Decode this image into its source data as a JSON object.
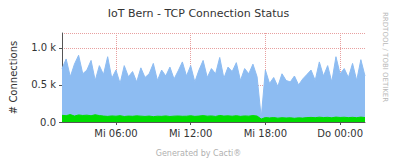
{
  "chart_data": {
    "type": "area",
    "title": "IoT Bern - TCP Connection Status",
    "y_label": "# Connections",
    "annotations": [
      "RRDTOOL / TOBI OETIKER",
      "Generated by Cacti®"
    ],
    "categories": [
      null,
      null,
      null,
      null,
      null,
      null,
      null,
      null,
      null,
      null,
      null,
      null,
      null,
      "Mi 06:00",
      null,
      null,
      null,
      null,
      null,
      null,
      null,
      null,
      null,
      null,
      null,
      null,
      null,
      null,
      null,
      null,
      null,
      "Mi 12:00",
      null,
      null,
      null,
      null,
      null,
      null,
      null,
      null,
      null,
      null,
      null,
      null,
      null,
      null,
      null,
      null,
      null,
      "Mi 18:00",
      null,
      null,
      null,
      null,
      null,
      null,
      null,
      null,
      null,
      null,
      null,
      null,
      null,
      null,
      null,
      null,
      null,
      "Do 00:00",
      null,
      null,
      null,
      null,
      null,
      null
    ],
    "series": [
      {
        "color": "#8dbcf2",
        "values": [
          720,
          850,
          610,
          780,
          900,
          650,
          700,
          830,
          560,
          760,
          640,
          880,
          590,
          700,
          520,
          760,
          610,
          680,
          540,
          730,
          600,
          650,
          790,
          560,
          700,
          620,
          740,
          580,
          690,
          810,
          620,
          760,
          540,
          700,
          830,
          600,
          720,
          650,
          870,
          590,
          740,
          680,
          800,
          560,
          720,
          650,
          780,
          610,
          60,
          700,
          520,
          600,
          480,
          650,
          560,
          540,
          620,
          500,
          580,
          640,
          700,
          560,
          810,
          620,
          760,
          540,
          880,
          650,
          720,
          600,
          790,
          560,
          840,
          620
        ]
      },
      {
        "color": "#00dd00",
        "values": [
          90,
          85,
          100,
          80,
          95,
          88,
          92,
          84,
          98,
          86,
          80,
          76,
          82,
          78,
          85,
          74,
          80,
          77,
          83,
          79,
          75,
          80,
          72,
          78,
          76,
          82,
          74,
          79,
          81,
          77,
          78,
          84,
          76,
          80,
          86,
          79,
          82,
          75,
          88,
          80,
          83,
          78,
          85,
          76,
          82,
          79,
          87,
          80,
          40,
          60,
          55,
          60,
          52,
          58,
          54,
          57,
          50,
          56,
          53,
          59,
          62,
          58,
          65,
          60,
          63,
          57,
          66,
          61,
          64,
          59,
          63,
          58,
          66,
          60
        ]
      }
    ],
    "ylim": [
      0,
      1200
    ],
    "yticks": [
      {
        "value": 0,
        "label": "0.0"
      },
      {
        "value": 500,
        "label": "0.5 k"
      },
      {
        "value": 1000,
        "label": "1.0 k"
      }
    ],
    "grid": true
  }
}
